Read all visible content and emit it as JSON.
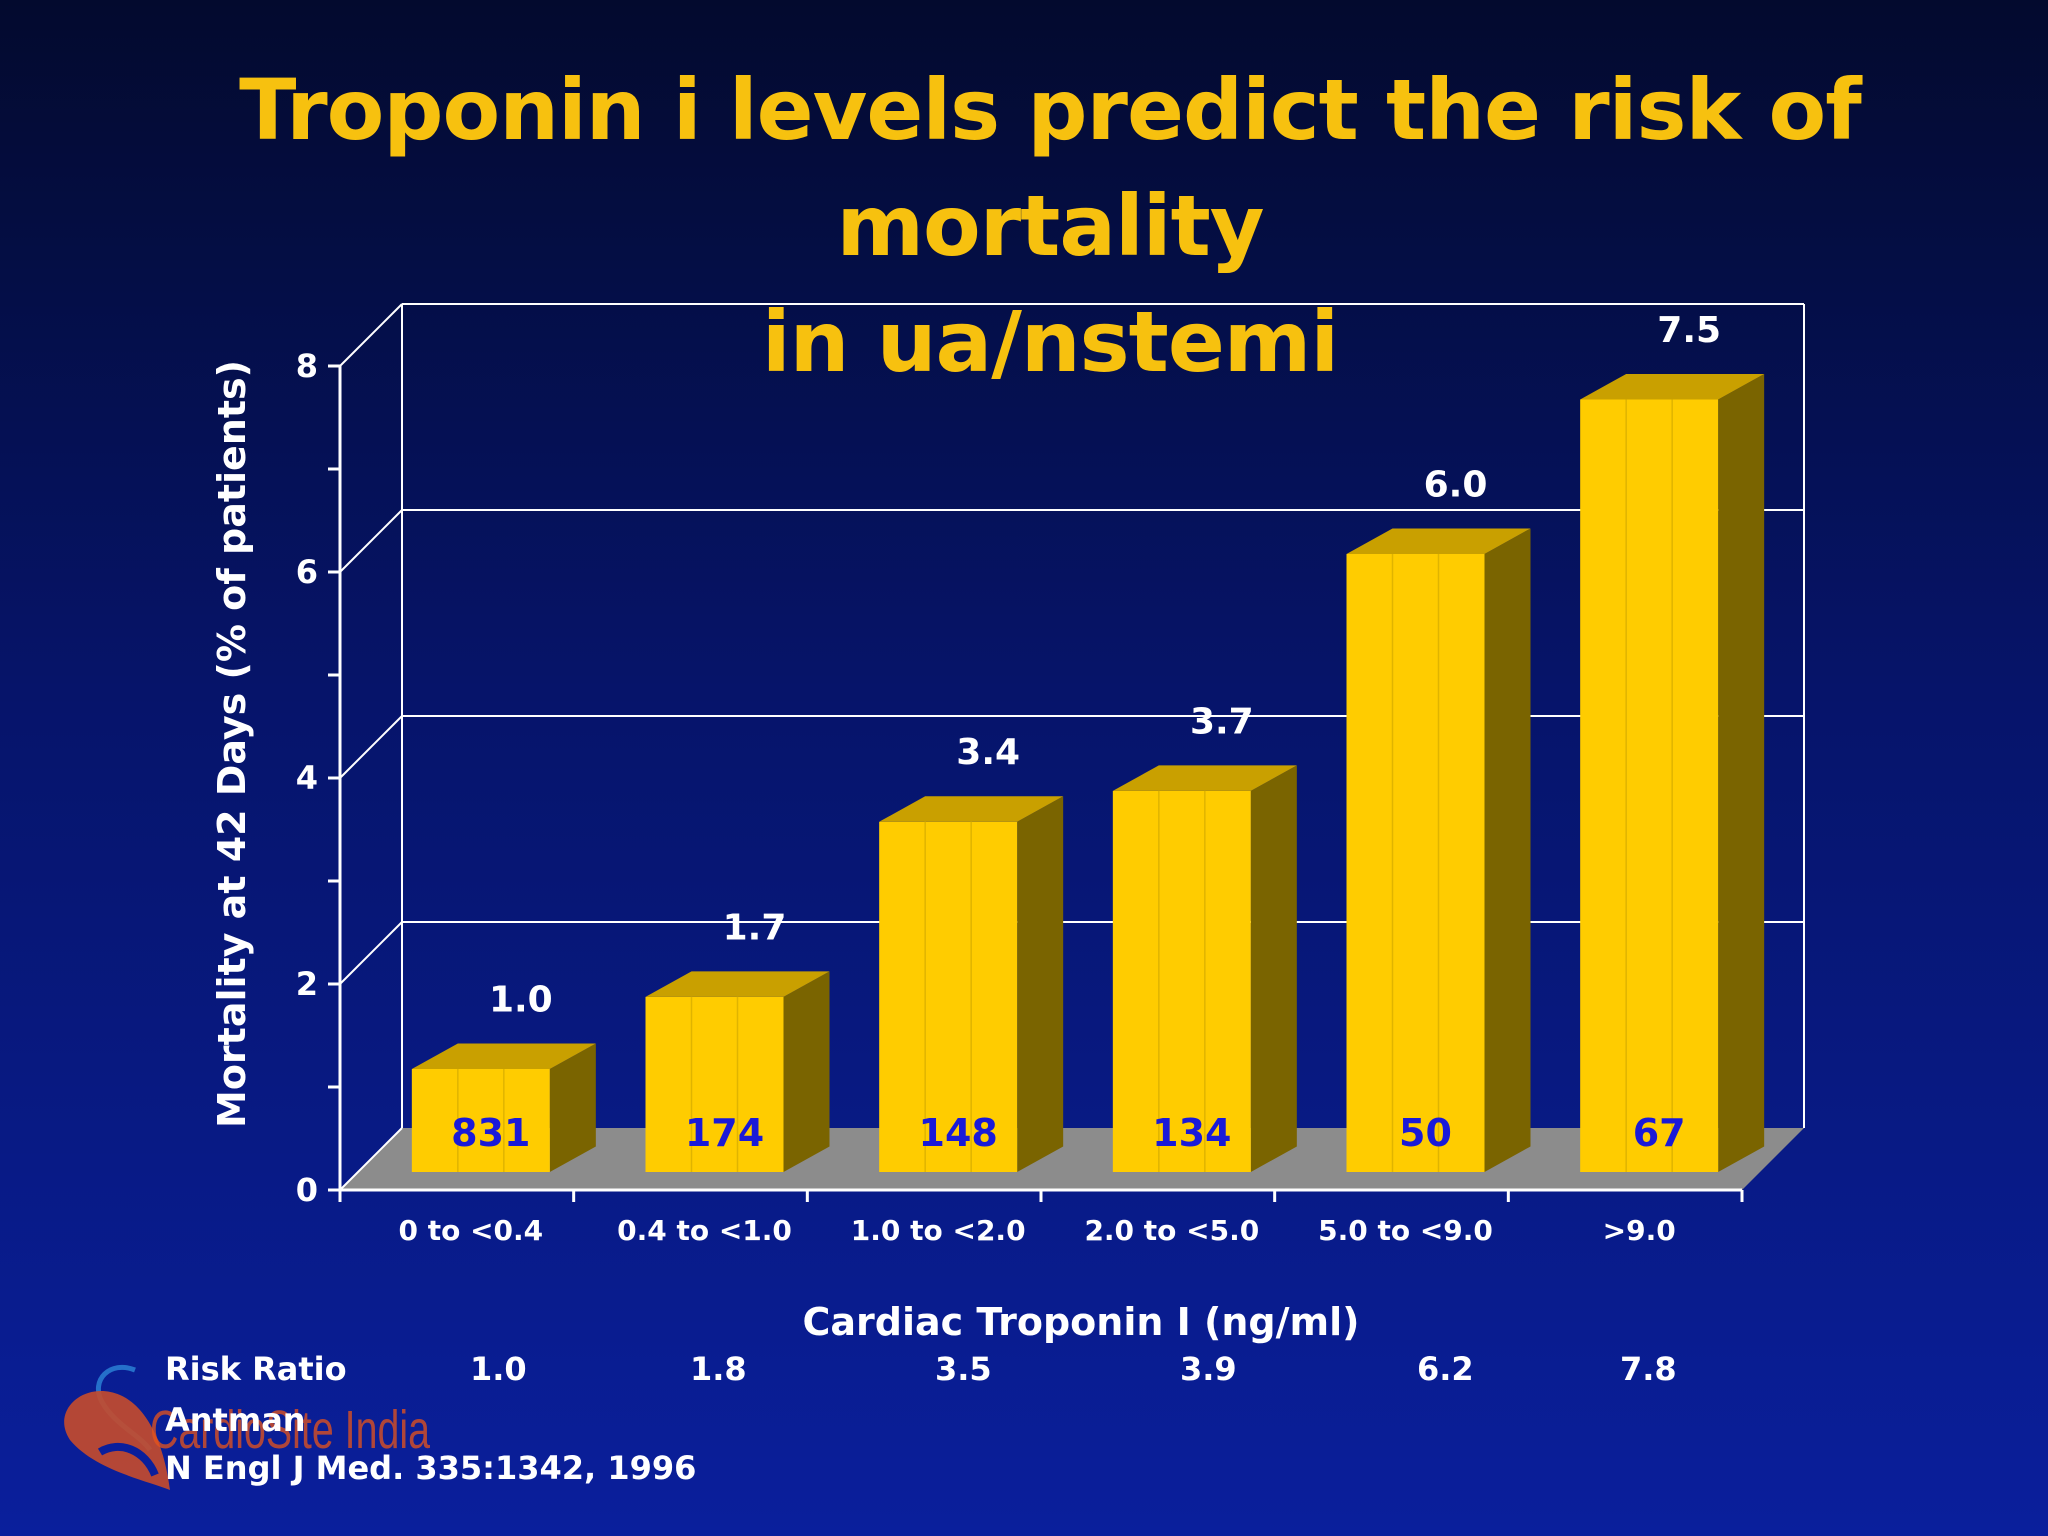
{
  "slide": {
    "title_line1": "Troponin i levels predict the risk of mortality",
    "title_line2": "in ua/nstemi"
  },
  "colors": {
    "background_top": "#030a2e",
    "background_bottom": "#0a1f9c",
    "title": "#f7c10f",
    "bar_front": "#ffcc00",
    "bar_top": "#c9a000",
    "bar_side": "#7a6400",
    "n_label": "#1a1ad8",
    "floor": "#8c8c8c"
  },
  "chart_data": {
    "type": "bar",
    "style": "3d",
    "title": "",
    "xlabel": "Cardiac Troponin I (ng/ml)",
    "ylabel": "Mortality at 42 Days (% of patients)",
    "ylim": [
      0,
      8
    ],
    "yticks": [
      "0",
      "2",
      "4",
      "6",
      "8"
    ],
    "grid": true,
    "categories": [
      "0 to <0.4",
      "0.4 to <1.0",
      "1.0 to <2.0",
      "2.0 to <5.0",
      "5.0 to <9.0",
      ">9.0"
    ],
    "values": [
      1.0,
      1.7,
      3.4,
      3.7,
      6.0,
      7.5
    ],
    "value_labels": [
      "1.0",
      "1.7",
      "3.4",
      "3.7",
      "6.0",
      "7.5"
    ],
    "n_labels": [
      "831",
      "174",
      "148",
      "134",
      "50",
      "67"
    ]
  },
  "risk_ratio": {
    "label": "Risk Ratio",
    "values": [
      "1.0",
      "1.8",
      "3.5",
      "3.9",
      "6.2",
      "7.8"
    ]
  },
  "citation": {
    "author": "Antman",
    "reference": "N Engl J Med. 335:1342, 1996"
  },
  "logo": {
    "text": "CardioSite India",
    "icon": "heart-logo-icon"
  }
}
